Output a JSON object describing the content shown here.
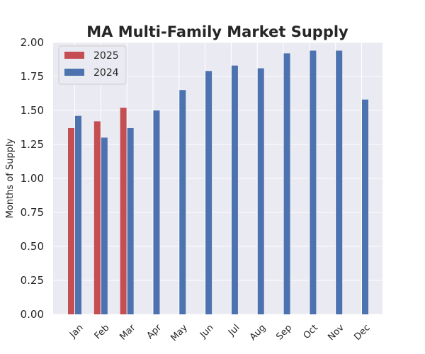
{
  "chart_data": {
    "type": "bar",
    "title": "MA Multi-Family Market Supply",
    "xlabel": "",
    "ylabel": "Months of Supply",
    "categories": [
      "Jan",
      "Feb",
      "Mar",
      "Apr",
      "May",
      "Jun",
      "Jul",
      "Aug",
      "Sep",
      "Oct",
      "Nov",
      "Dec"
    ],
    "series": [
      {
        "name": "2025",
        "color": "#c44e52",
        "values": [
          1.37,
          1.42,
          1.52,
          null,
          null,
          null,
          null,
          null,
          null,
          null,
          null,
          null
        ]
      },
      {
        "name": "2024",
        "color": "#4c72b0",
        "values": [
          1.46,
          1.3,
          1.37,
          1.5,
          1.65,
          1.79,
          1.83,
          1.81,
          1.92,
          1.94,
          1.94,
          1.58
        ]
      }
    ],
    "yticks": [
      "0.00",
      "0.25",
      "0.50",
      "0.75",
      "1.00",
      "1.25",
      "1.50",
      "1.75",
      "2.00"
    ],
    "ylim": [
      0,
      2.0
    ],
    "grid": true,
    "legend_position": "top-left",
    "background_color": "#eaeaf2"
  }
}
